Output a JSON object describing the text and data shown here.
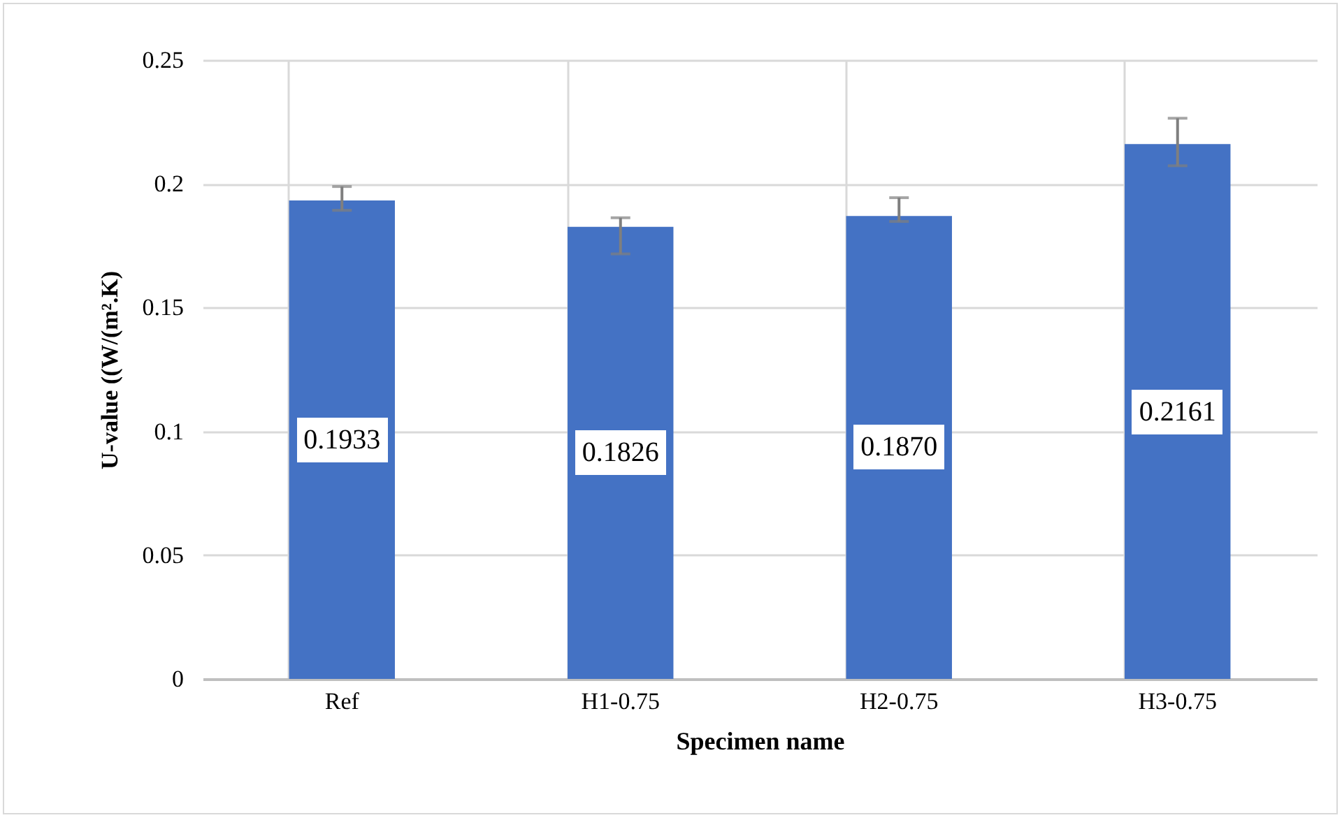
{
  "chart_data": {
    "type": "bar",
    "xlabel": "Specimen name",
    "ylabel": "U-value ((W/(m².K)",
    "categories": [
      "Ref",
      "H1-0.75",
      "H2-0.75",
      "H3-0.75"
    ],
    "values": [
      0.1933,
      0.1826,
      0.187,
      0.2161
    ],
    "errors": [
      [
        0.1893,
        0.1989
      ],
      [
        0.1717,
        0.1863
      ],
      [
        0.1848,
        0.1944
      ],
      [
        0.2073,
        0.2265
      ]
    ],
    "value_labels": [
      "0.1933",
      "0.1826",
      "0.1870",
      "0.2161"
    ],
    "color": "#4472c4",
    "ylim": [
      0,
      0.25
    ],
    "yticks": [
      0,
      0.05,
      0.1,
      0.15,
      0.2,
      0.25
    ],
    "grid": true
  }
}
